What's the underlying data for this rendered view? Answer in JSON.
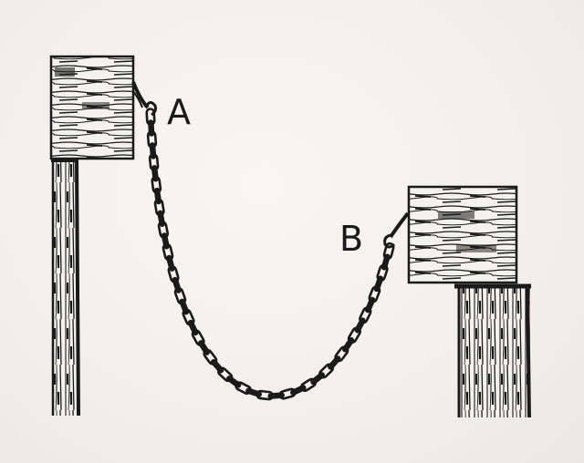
{
  "labels": {
    "point_a": "A",
    "point_b": "B"
  },
  "colors": {
    "ink": "#1a1a1a",
    "paper": "#f4f2ef"
  }
}
